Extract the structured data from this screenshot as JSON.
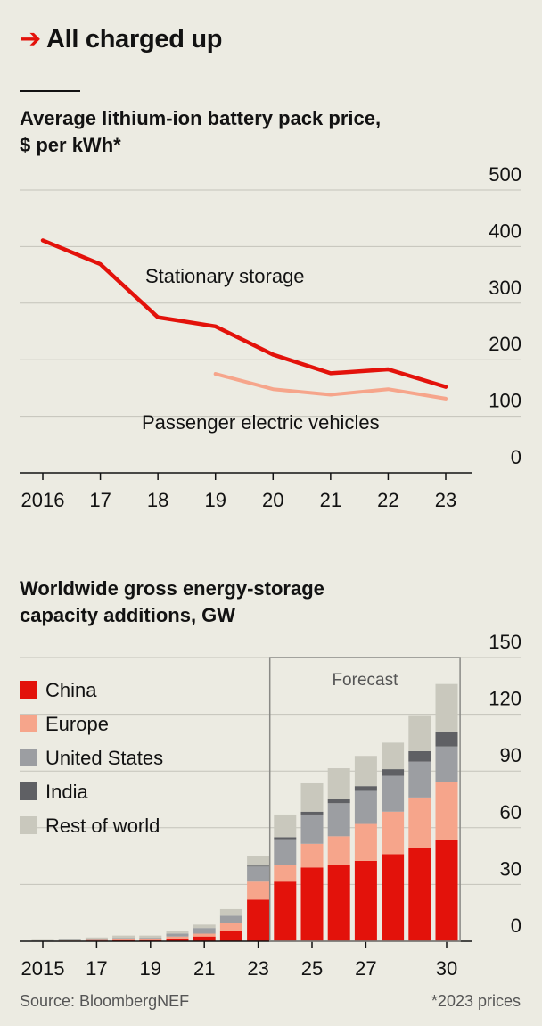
{
  "header": {
    "arrow": "➔",
    "title": "All charged up"
  },
  "colors": {
    "red": "#e3120b",
    "salmon": "#f6a58b",
    "us": "#9c9ea2",
    "india": "#5f6064",
    "row": "#c9c8bd",
    "grid": "#c4c3ba",
    "forecast_box": "#8a8a86"
  },
  "chart_data": [
    {
      "type": "line",
      "title": "Average lithium-ion battery pack price, $ per kWh*",
      "ylim": [
        0,
        500
      ],
      "yticks": [
        "0",
        "100",
        "200",
        "300",
        "400",
        "500"
      ],
      "x": [
        2016,
        2017,
        2018,
        2019,
        2020,
        2021,
        2022,
        2023
      ],
      "xtick_labels": [
        "2016",
        "17",
        "18",
        "19",
        "20",
        "21",
        "22",
        "23"
      ],
      "series": [
        {
          "name": "Stationary storage",
          "color": "#e3120b",
          "values": [
            411,
            369,
            275,
            259,
            209,
            176,
            183,
            152
          ]
        },
        {
          "name": "Passenger electric vehicles",
          "color": "#f6a58b",
          "values": [
            null,
            null,
            null,
            175,
            148,
            138,
            148,
            131
          ]
        }
      ]
    },
    {
      "type": "bar",
      "title": "Worldwide gross energy-storage capacity additions, GW",
      "ylim": [
        0,
        150
      ],
      "yticks": [
        "0",
        "30",
        "60",
        "90",
        "120",
        "150"
      ],
      "categories": [
        2015,
        2016,
        2017,
        2018,
        2019,
        2020,
        2021,
        2022,
        2023,
        2024,
        2025,
        2026,
        2027,
        2028,
        2029,
        2030
      ],
      "xtick_labels": [
        "2015",
        "17",
        "19",
        "21",
        "23",
        "25",
        "27",
        "30"
      ],
      "xtick_years": [
        2015,
        2017,
        2019,
        2021,
        2023,
        2025,
        2027,
        2030
      ],
      "annotation": "Forecast",
      "forecast_from": 2024,
      "stacked": true,
      "series": [
        {
          "name": "China",
          "color": "#e3120b",
          "values": [
            0.1,
            0.2,
            0.4,
            0.6,
            0.6,
            1.5,
            2.5,
            5.5,
            22,
            31.5,
            39,
            40.5,
            42.5,
            46,
            49.5,
            53.5
          ]
        },
        {
          "name": "Europe",
          "color": "#f6a58b",
          "values": [
            0.1,
            0.2,
            0.3,
            0.5,
            0.6,
            1.0,
            1.5,
            4.0,
            9.5,
            9.0,
            12.5,
            15.0,
            19.5,
            22.5,
            26.5,
            30.5
          ]
        },
        {
          "name": "United States",
          "color": "#9c9ea2",
          "values": [
            0.2,
            0.3,
            0.5,
            0.6,
            0.6,
            1.5,
            3.0,
            4.0,
            8.0,
            13.5,
            15.5,
            17.5,
            17.5,
            19.0,
            19.0,
            19.0
          ]
        },
        {
          "name": "India",
          "color": "#5f6064",
          "values": [
            0,
            0,
            0,
            0,
            0,
            0,
            0,
            0,
            0.5,
            1.0,
            1.5,
            2.0,
            2.5,
            3.5,
            5.5,
            7.5
          ]
        },
        {
          "name": "Rest of world",
          "color": "#c9c8bd",
          "values": [
            0.3,
            0.5,
            0.8,
            1.3,
            1.2,
            1.5,
            1.8,
            3.5,
            5.0,
            12.0,
            15.0,
            16.5,
            16.0,
            14.0,
            19.0,
            25.5
          ]
        }
      ]
    }
  ],
  "footer": {
    "source": "Source: BloombergNEF",
    "note": "*2023 prices"
  }
}
